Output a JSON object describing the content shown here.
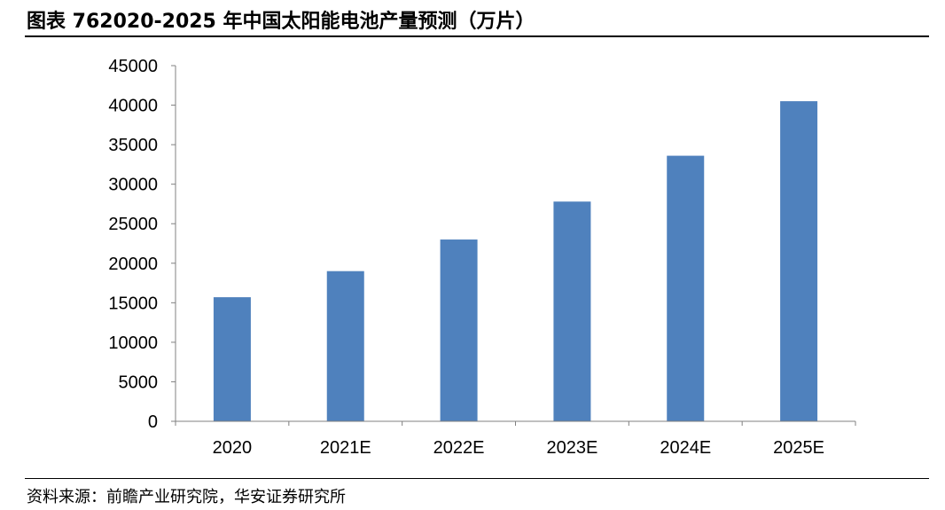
{
  "header": {
    "title": "图表 762020-2025 年中国太阳能电池产量预测（万片）"
  },
  "footer": {
    "source": "资料来源：前瞻产业研究院，华安证券研究所"
  },
  "chart_data": {
    "type": "bar",
    "categories": [
      "2020",
      "2021E",
      "2022E",
      "2023E",
      "2024E",
      "2025E"
    ],
    "values": [
      15700,
      19000,
      23000,
      27800,
      33600,
      40500
    ],
    "ylim": [
      0,
      45000
    ],
    "yticks": [
      0,
      5000,
      10000,
      15000,
      20000,
      25000,
      30000,
      35000,
      40000,
      45000
    ],
    "grid": false,
    "legend": "none",
    "color": "#4F81BD"
  }
}
